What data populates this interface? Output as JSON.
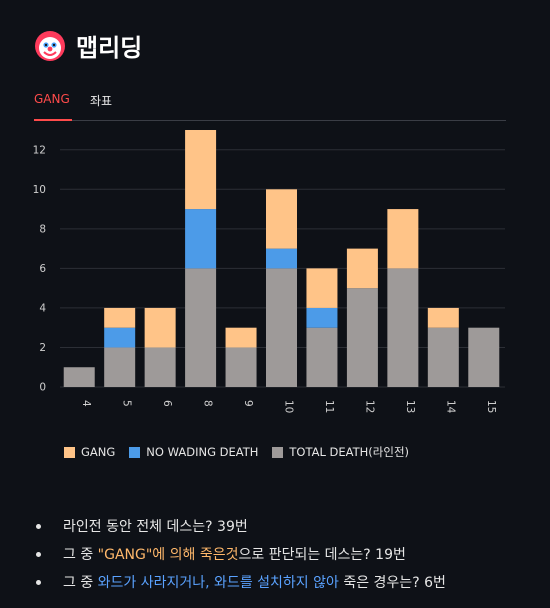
{
  "app": {
    "title": "맵리딩"
  },
  "tabs": [
    {
      "label": "GANG",
      "active": true
    },
    {
      "label": "좌표",
      "active": false
    }
  ],
  "colors": {
    "gang": "#ffc488",
    "no_wading": "#4c9be8",
    "total": "#9e9a99",
    "accent": "#ff4b4b",
    "highlight_orange": "#ffb86b",
    "highlight_blue": "#5aa2ff"
  },
  "chart_data": {
    "type": "bar",
    "stacked": true,
    "categories": [
      "4",
      "5",
      "6",
      "8",
      "9",
      "10",
      "11",
      "12",
      "13",
      "14",
      "15"
    ],
    "series": [
      {
        "name": "TOTAL DEATH(라인전)",
        "values": [
          1,
          2,
          2,
          6,
          2,
          6,
          3,
          5,
          6,
          3,
          3
        ]
      },
      {
        "name": "NO WADING DEATH",
        "values": [
          0,
          1,
          0,
          3,
          0,
          1,
          1,
          0,
          0,
          0,
          0
        ]
      },
      {
        "name": "GANG",
        "values": [
          0,
          1,
          2,
          4,
          1,
          3,
          2,
          2,
          3,
          1,
          0
        ]
      }
    ],
    "yticks": [
      0,
      2,
      4,
      6,
      8,
      10,
      12
    ],
    "ylim": [
      0,
      13
    ],
    "grid": true,
    "legend_position": "bottom"
  },
  "legend": [
    {
      "label": "GANG",
      "color": "#ffc488"
    },
    {
      "label": "NO WADING DEATH",
      "color": "#4c9be8"
    },
    {
      "label": "TOTAL DEATH(라인전)",
      "color": "#9e9a99"
    }
  ],
  "summary": {
    "line1": "라인전 동안 전체 데스는? 39번",
    "line2_pre": "그 중 ",
    "line2_hl": "\"GANG\"에 의해 죽은것",
    "line2_post": "으로 판단되는 데스는? 19번",
    "line3_pre": "그 중 ",
    "line3_hl": "와드가 사라지거나, 와드를 설치하지 않아",
    "line3_post": " 죽은 경우는? 6번"
  }
}
